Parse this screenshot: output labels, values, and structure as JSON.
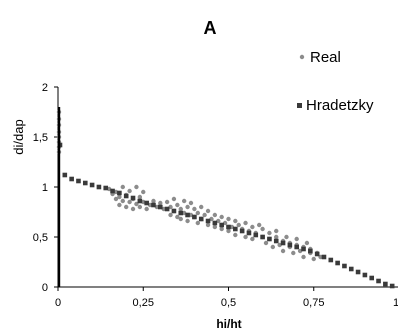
{
  "chart_data": {
    "type": "scatter",
    "title": "A",
    "xlabel": "hi/ht",
    "ylabel": "di/dap",
    "xlim": [
      0,
      1
    ],
    "ylim": [
      0,
      2
    ],
    "x_ticks": [
      0,
      0.25,
      0.5,
      0.75,
      1
    ],
    "x_tick_labels": [
      "0",
      "0,25",
      "0,5",
      "0,75",
      "1"
    ],
    "y_ticks": [
      0,
      0.5,
      1,
      1.5,
      2
    ],
    "y_tick_labels": [
      "0",
      "0,5",
      "1",
      "1,5",
      "2"
    ],
    "grid": false,
    "legend_position": "right",
    "series": [
      {
        "name": "Real",
        "marker": "circle",
        "color": "#8c8c8c",
        "points": [
          [
            0,
            1.75
          ],
          [
            0,
            1.68
          ],
          [
            0,
            1.62
          ],
          [
            0,
            1.55
          ],
          [
            0,
            1.5
          ],
          [
            0,
            1.45
          ],
          [
            0,
            1.4
          ],
          [
            0,
            1.35
          ],
          [
            0.15,
            0.98
          ],
          [
            0.16,
            0.93
          ],
          [
            0.17,
            0.88
          ],
          [
            0.17,
            0.95
          ],
          [
            0.18,
            0.82
          ],
          [
            0.18,
            0.9
          ],
          [
            0.19,
            1.0
          ],
          [
            0.19,
            0.86
          ],
          [
            0.2,
            0.8
          ],
          [
            0.2,
            0.92
          ],
          [
            0.21,
            0.85
          ],
          [
            0.21,
            0.96
          ],
          [
            0.22,
            0.78
          ],
          [
            0.22,
            0.88
          ],
          [
            0.23,
            1.0
          ],
          [
            0.23,
            0.83
          ],
          [
            0.24,
            0.9
          ],
          [
            0.24,
            0.8
          ],
          [
            0.25,
            0.95
          ],
          [
            0.25,
            0.85
          ],
          [
            0.26,
            0.78
          ],
          [
            0.27,
            0.82
          ],
          [
            0.28,
            0.86
          ],
          [
            0.29,
            0.8
          ],
          [
            0.3,
            0.84
          ],
          [
            0.31,
            0.78
          ],
          [
            0.32,
            0.85
          ],
          [
            0.33,
            0.72
          ],
          [
            0.33,
            0.8
          ],
          [
            0.34,
            0.88
          ],
          [
            0.34,
            0.76
          ],
          [
            0.35,
            0.7
          ],
          [
            0.35,
            0.82
          ],
          [
            0.36,
            0.78
          ],
          [
            0.36,
            0.68
          ],
          [
            0.37,
            0.86
          ],
          [
            0.37,
            0.74
          ],
          [
            0.38,
            0.8
          ],
          [
            0.38,
            0.66
          ],
          [
            0.39,
            0.72
          ],
          [
            0.39,
            0.84
          ],
          [
            0.4,
            0.7
          ],
          [
            0.4,
            0.78
          ],
          [
            0.41,
            0.64
          ],
          [
            0.41,
            0.74
          ],
          [
            0.42,
            0.8
          ],
          [
            0.42,
            0.68
          ],
          [
            0.43,
            0.72
          ],
          [
            0.44,
            0.62
          ],
          [
            0.44,
            0.76
          ],
          [
            0.45,
            0.68
          ],
          [
            0.46,
            0.6
          ],
          [
            0.46,
            0.72
          ],
          [
            0.47,
            0.66
          ],
          [
            0.48,
            0.58
          ],
          [
            0.48,
            0.7
          ],
          [
            0.49,
            0.64
          ],
          [
            0.5,
            0.56
          ],
          [
            0.5,
            0.68
          ],
          [
            0.51,
            0.6
          ],
          [
            0.52,
            0.66
          ],
          [
            0.52,
            0.52
          ],
          [
            0.53,
            0.62
          ],
          [
            0.54,
            0.58
          ],
          [
            0.55,
            0.5
          ],
          [
            0.55,
            0.64
          ],
          [
            0.56,
            0.56
          ],
          [
            0.57,
            0.6
          ],
          [
            0.57,
            0.48
          ],
          [
            0.58,
            0.54
          ],
          [
            0.59,
            0.62
          ],
          [
            0.6,
            0.5
          ],
          [
            0.6,
            0.58
          ],
          [
            0.61,
            0.44
          ],
          [
            0.62,
            0.54
          ],
          [
            0.62,
            0.48
          ],
          [
            0.63,
            0.4
          ],
          [
            0.64,
            0.5
          ],
          [
            0.64,
            0.56
          ],
          [
            0.65,
            0.42
          ],
          [
            0.66,
            0.46
          ],
          [
            0.66,
            0.36
          ],
          [
            0.67,
            0.5
          ],
          [
            0.68,
            0.4
          ],
          [
            0.68,
            0.44
          ],
          [
            0.69,
            0.34
          ],
          [
            0.7,
            0.42
          ],
          [
            0.7,
            0.48
          ],
          [
            0.71,
            0.36
          ],
          [
            0.72,
            0.4
          ],
          [
            0.72,
            0.3
          ],
          [
            0.73,
            0.44
          ],
          [
            0.74,
            0.34
          ],
          [
            0.74,
            0.38
          ],
          [
            0.75,
            0.28
          ],
          [
            0.76,
            0.34
          ],
          [
            0.77,
            0.3
          ]
        ]
      },
      {
        "name": "Hradetzky",
        "marker": "square",
        "color": "#3a3a3a",
        "points": [
          [
            0,
            1.42
          ],
          [
            0.02,
            1.12
          ],
          [
            0.04,
            1.08
          ],
          [
            0.06,
            1.06
          ],
          [
            0.08,
            1.04
          ],
          [
            0.1,
            1.02
          ],
          [
            0.12,
            1.0
          ],
          [
            0.14,
            0.99
          ],
          [
            0.16,
            0.96
          ],
          [
            0.18,
            0.94
          ],
          [
            0.2,
            0.91
          ],
          [
            0.22,
            0.89
          ],
          [
            0.24,
            0.86
          ],
          [
            0.26,
            0.84
          ],
          [
            0.28,
            0.82
          ],
          [
            0.3,
            0.8
          ],
          [
            0.32,
            0.78
          ],
          [
            0.34,
            0.76
          ],
          [
            0.36,
            0.74
          ],
          [
            0.38,
            0.72
          ],
          [
            0.4,
            0.7
          ],
          [
            0.42,
            0.68
          ],
          [
            0.44,
            0.66
          ],
          [
            0.46,
            0.64
          ],
          [
            0.48,
            0.62
          ],
          [
            0.5,
            0.6
          ],
          [
            0.52,
            0.58
          ],
          [
            0.54,
            0.56
          ],
          [
            0.56,
            0.54
          ],
          [
            0.58,
            0.52
          ],
          [
            0.6,
            0.5
          ],
          [
            0.62,
            0.48
          ],
          [
            0.64,
            0.46
          ],
          [
            0.66,
            0.44
          ],
          [
            0.68,
            0.42
          ],
          [
            0.7,
            0.4
          ],
          [
            0.72,
            0.38
          ],
          [
            0.74,
            0.36
          ],
          [
            0.76,
            0.33
          ],
          [
            0.78,
            0.3
          ],
          [
            0.8,
            0.27
          ],
          [
            0.82,
            0.24
          ],
          [
            0.84,
            0.21
          ],
          [
            0.86,
            0.18
          ],
          [
            0.88,
            0.15
          ],
          [
            0.9,
            0.12
          ],
          [
            0.92,
            0.09
          ],
          [
            0.94,
            0.06
          ],
          [
            0.96,
            0.03
          ],
          [
            0.98,
            0.01
          ]
        ]
      }
    ],
    "vertical_line": {
      "x": 0,
      "y_from": 0,
      "y_to": 1.8
    }
  }
}
